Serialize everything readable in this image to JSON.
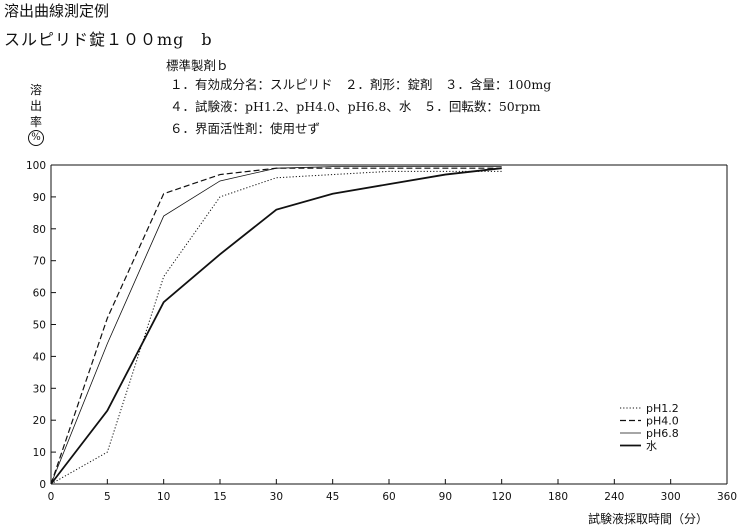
{
  "header": {
    "title": "溶出曲線測定例",
    "subtitle": "スルピリド錠１００mg　b"
  },
  "info": {
    "heading": "標準製剤ｂ",
    "line1": "１．有効成分名：スルピリド　２．剤形：錠剤　３．含量：100mg",
    "line2": "４．試験液：pH1.2、pH4.0、pH6.8、水　５．回転数：50rpm",
    "line3": "６．界面活性剤：使用せず"
  },
  "chart_data": {
    "type": "line",
    "ylabel": "溶出率（%）",
    "ylabel_chars": [
      "溶",
      "出",
      "率"
    ],
    "ylabel_unit": "%",
    "xlabel": "試験液採取時間（分）",
    "x_ticks": [
      "0",
      "5",
      "10",
      "15",
      "30",
      "45",
      "60",
      "90",
      "120",
      "180",
      "240",
      "300",
      "360"
    ],
    "y_ticks": [
      "0",
      "10",
      "20",
      "30",
      "40",
      "50",
      "60",
      "70",
      "80",
      "90",
      "100"
    ],
    "ylim": [
      0,
      100
    ],
    "x": [
      0,
      5,
      10,
      15,
      30,
      45,
      60,
      90,
      120
    ],
    "series": [
      {
        "name": "pH1.2",
        "style": "dotted",
        "values": [
          0,
          10,
          65,
          90,
          96,
          97,
          98,
          98,
          98
        ]
      },
      {
        "name": "pH4.0",
        "style": "dashed",
        "values": [
          0,
          52,
          91,
          97,
          99,
          99,
          99,
          99,
          99
        ]
      },
      {
        "name": "pH6.8",
        "style": "thin",
        "values": [
          0,
          44,
          84,
          95,
          99,
          99.5,
          99.5,
          99.5,
          99.5
        ]
      },
      {
        "name": "水",
        "style": "thick",
        "values": [
          0,
          23,
          57,
          72,
          86,
          91,
          94,
          97,
          99
        ]
      }
    ],
    "legend_position": "lower-right",
    "grid": false
  }
}
